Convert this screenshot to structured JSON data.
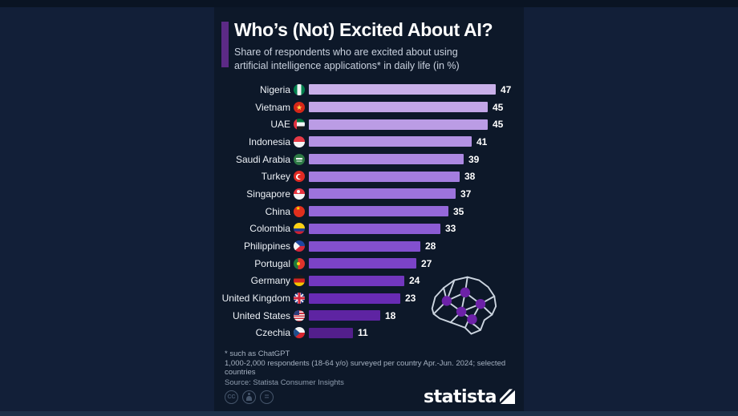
{
  "header": {
    "title": "Who’s (Not) Excited About AI?",
    "subtitle_line1": "Share of respondents who are excited about using",
    "subtitle_line2": "artificial intelligence applications* in daily life (in %)"
  },
  "chart_data": {
    "type": "bar",
    "orientation": "horizontal",
    "title": "Who’s (Not) Excited About AI?",
    "unit": "%",
    "xlim": [
      0,
      47
    ],
    "legend": "none",
    "grid": false,
    "rows": [
      {
        "country": "Nigeria",
        "value": 47,
        "flag": "nigeria",
        "color": "#c9b0e9"
      },
      {
        "country": "Vietnam",
        "value": 45,
        "flag": "vietnam",
        "color": "#c2a6e7"
      },
      {
        "country": "UAE",
        "value": 45,
        "flag": "uae",
        "color": "#bb9ce5"
      },
      {
        "country": "Indonesia",
        "value": 41,
        "flag": "indonesia",
        "color": "#b392e3"
      },
      {
        "country": "Saudi Arabia",
        "value": 39,
        "flag": "saudi-arabia",
        "color": "#ac88e1"
      },
      {
        "country": "Turkey",
        "value": 38,
        "flag": "turkey",
        "color": "#a47ddf"
      },
      {
        "country": "Singapore",
        "value": 37,
        "flag": "singapore",
        "color": "#9d73dd"
      },
      {
        "country": "China",
        "value": 35,
        "flag": "china",
        "color": "#9568da"
      },
      {
        "country": "Colombia",
        "value": 33,
        "flag": "colombia",
        "color": "#8c5cd4"
      },
      {
        "country": "Philippines",
        "value": 28,
        "flag": "philippines",
        "color": "#8350ce"
      },
      {
        "country": "Portugal",
        "value": 27,
        "flag": "portugal",
        "color": "#7b43c7"
      },
      {
        "country": "Germany",
        "value": 24,
        "flag": "germany",
        "color": "#7237bf"
      },
      {
        "country": "United Kingdom",
        "value": 23,
        "flag": "uk",
        "color": "#682bb4"
      },
      {
        "country": "United States",
        "value": 18,
        "flag": "us",
        "color": "#5e24a2"
      },
      {
        "country": "Czechia",
        "value": 11,
        "flag": "czechia",
        "color": "#531f8c"
      }
    ]
  },
  "footnotes": {
    "line1": "* such as ChatGPT",
    "line2": "1,000-2,000 respondents (18-64 y/o) surveyed per country Apr.-Jun. 2024; selected countries",
    "line3": "Source: Statista Consumer Insights"
  },
  "footer": {
    "brand": "statista",
    "license_icons": [
      "cc",
      "attribution",
      "no-derivatives"
    ]
  },
  "colors": {
    "background_outer": "#121f38",
    "background_panel": "#0d1829",
    "accent": "#5c2a86",
    "bar_gradient_start": "#c9b0e9",
    "bar_gradient_end": "#531f8c",
    "brain_node": "#6d22a8",
    "brain_outline": "#ccd5e0"
  }
}
